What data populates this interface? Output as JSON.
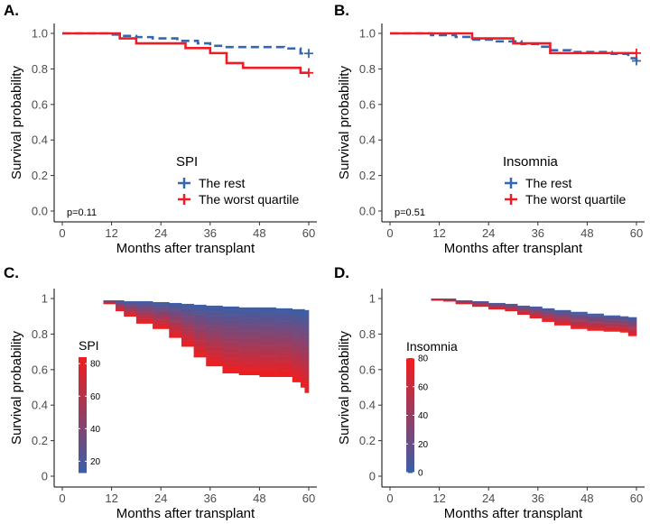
{
  "chart_data": [
    {
      "panel": "A.",
      "type": "line",
      "ylabel": "Survival probability",
      "xlabel": "Months after transplant",
      "x_ticks": [
        "0",
        "12",
        "24",
        "36",
        "48",
        "60"
      ],
      "y_ticks": [
        "0.0",
        "0.2",
        "0.4",
        "0.6",
        "0.8",
        "1.0"
      ],
      "xlim": [
        0,
        60
      ],
      "ylim": [
        0,
        1
      ],
      "annotation": "p=0.11",
      "legend": {
        "title": "SPI",
        "entries": [
          "The rest",
          "The worst quartile"
        ]
      },
      "series": [
        {
          "name": "The rest",
          "color": "#3566b0",
          "dashed": true,
          "x": [
            0,
            12,
            14,
            18,
            22,
            28,
            33,
            36,
            39,
            48,
            54,
            58,
            60
          ],
          "y": [
            1.0,
            0.993,
            0.986,
            0.979,
            0.972,
            0.958,
            0.944,
            0.93,
            0.923,
            0.923,
            0.915,
            0.887,
            0.887
          ]
        },
        {
          "name": "The worst quartile",
          "color": "#ee1c24",
          "dashed": false,
          "x": [
            0,
            12,
            14,
            18,
            24,
            30,
            36,
            40,
            44,
            58,
            60
          ],
          "y": [
            1.0,
            1.0,
            0.972,
            0.944,
            0.944,
            0.917,
            0.889,
            0.833,
            0.806,
            0.778,
            0.778
          ]
        }
      ]
    },
    {
      "panel": "B.",
      "type": "line",
      "ylabel": "Survival probability",
      "xlabel": "Months after transplant",
      "x_ticks": [
        "0",
        "12",
        "24",
        "36",
        "48",
        "60"
      ],
      "y_ticks": [
        "0.0",
        "0.2",
        "0.4",
        "0.6",
        "0.8",
        "1.0"
      ],
      "xlim": [
        0,
        60
      ],
      "ylim": [
        0,
        1
      ],
      "annotation": "p=0.51",
      "legend": {
        "title": "Insomnia",
        "entries": [
          "The rest",
          "The worst quartile"
        ]
      },
      "series": [
        {
          "name": "The rest",
          "color": "#3566b0",
          "dashed": true,
          "x": [
            0,
            10,
            16,
            20,
            26,
            32,
            36,
            39,
            44,
            48,
            54,
            58,
            60
          ],
          "y": [
            1.0,
            0.99,
            0.98,
            0.965,
            0.955,
            0.94,
            0.925,
            0.905,
            0.895,
            0.895,
            0.885,
            0.86,
            0.845
          ]
        },
        {
          "name": "The worst quartile",
          "color": "#ee1c24",
          "dashed": false,
          "x": [
            0,
            20,
            30,
            39,
            60
          ],
          "y": [
            1.0,
            0.972,
            0.944,
            0.889,
            0.889
          ]
        }
      ]
    },
    {
      "panel": "C.",
      "type": "area",
      "ylabel": "Survival probability",
      "xlabel": "Months after transplant",
      "x_ticks": [
        "0",
        "12",
        "24",
        "36",
        "48",
        "60"
      ],
      "y_ticks": [
        "0",
        "0.2",
        "0.4",
        "0.6",
        "0.8",
        "1"
      ],
      "xlim": [
        0,
        60
      ],
      "ylim": [
        0,
        1
      ],
      "colorbar": {
        "title": "SPI",
        "ticks": [
          "20",
          "40",
          "60",
          "80"
        ],
        "range": [
          13,
          84
        ],
        "low_color": "#3a5fa8",
        "high_color": "#f21d1d"
      },
      "band": {
        "x": [
          10,
          13,
          15,
          18,
          22,
          26,
          29,
          32,
          35,
          39,
          43,
          48,
          52,
          56,
          58,
          59,
          60
        ],
        "upper": [
          0.99,
          0.99,
          0.985,
          0.985,
          0.98,
          0.975,
          0.97,
          0.965,
          0.96,
          0.955,
          0.95,
          0.95,
          0.945,
          0.94,
          0.94,
          0.935,
          0.935
        ],
        "lower": [
          0.97,
          0.93,
          0.9,
          0.86,
          0.83,
          0.78,
          0.73,
          0.67,
          0.62,
          0.58,
          0.57,
          0.56,
          0.56,
          0.53,
          0.5,
          0.47,
          0.47
        ]
      }
    },
    {
      "panel": "D.",
      "type": "area",
      "ylabel": "Survival probability",
      "xlabel": "Months after transplant",
      "x_ticks": [
        "0",
        "12",
        "24",
        "36",
        "48",
        "60"
      ],
      "y_ticks": [
        "0",
        "0.2",
        "0.4",
        "0.6",
        "0.8",
        "1"
      ],
      "xlim": [
        0,
        60
      ],
      "ylim": [
        0,
        1
      ],
      "colorbar": {
        "title": "Insomnia",
        "ticks": [
          "0",
          "20",
          "40",
          "60",
          "80"
        ],
        "range": [
          0,
          80
        ],
        "low_color": "#3a5fa8",
        "high_color": "#f21d1d"
      },
      "band": {
        "x": [
          10,
          13,
          16,
          20,
          24,
          28,
          31,
          34,
          37,
          40,
          44,
          48,
          52,
          56,
          58,
          60
        ],
        "upper": [
          1.0,
          1.0,
          0.99,
          0.985,
          0.975,
          0.97,
          0.96,
          0.955,
          0.945,
          0.935,
          0.925,
          0.915,
          0.905,
          0.9,
          0.895,
          0.89
        ],
        "lower": [
          0.99,
          0.985,
          0.97,
          0.955,
          0.94,
          0.93,
          0.91,
          0.89,
          0.87,
          0.85,
          0.83,
          0.82,
          0.815,
          0.81,
          0.79,
          0.78
        ]
      }
    }
  ]
}
